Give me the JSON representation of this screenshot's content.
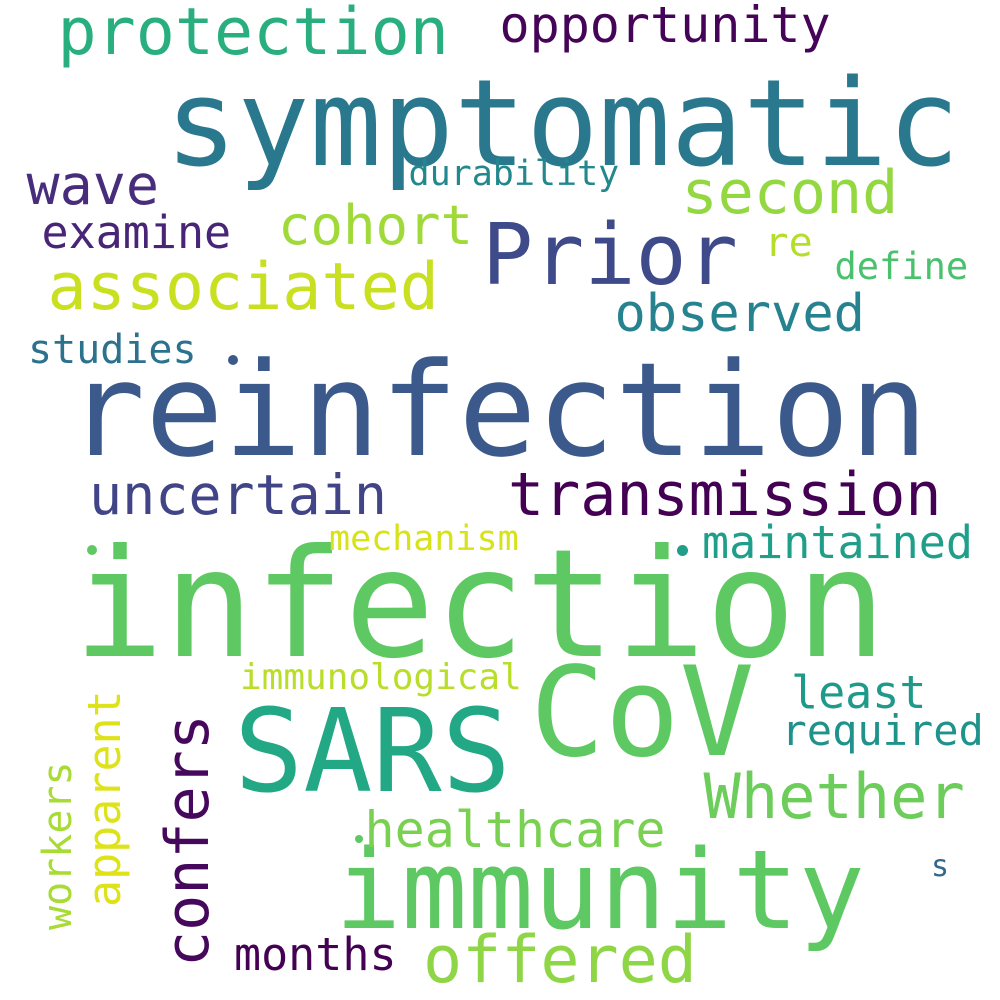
{
  "words": [
    {
      "text": "reinfection",
      "color": "#3b5a8b",
      "rotated": false
    },
    {
      "text": "infection",
      "color": "#5ec962",
      "rotated": false
    },
    {
      "text": "symptomatic",
      "color": "#2a788e",
      "rotated": false
    },
    {
      "text": "immunity",
      "color": "#5ec962",
      "rotated": false
    },
    {
      "text": "SARS",
      "color": "#22a884",
      "rotated": false
    },
    {
      "text": "CoV",
      "color": "#5ec962",
      "rotated": false
    },
    {
      "text": "Prior",
      "color": "#3e4a89",
      "rotated": false
    },
    {
      "text": "transmission",
      "color": "#440154",
      "rotated": false
    },
    {
      "text": "uncertain",
      "color": "#414487",
      "rotated": false
    },
    {
      "text": "associated",
      "color": "#c8e020",
      "rotated": false
    },
    {
      "text": "protection",
      "color": "#29af7f",
      "rotated": false
    },
    {
      "text": "opportunity",
      "color": "#450457",
      "rotated": false
    },
    {
      "text": "wave",
      "color": "#472d7b",
      "rotated": false
    },
    {
      "text": "second",
      "color": "#93d741",
      "rotated": false
    },
    {
      "text": "durability",
      "color": "#23888e",
      "rotated": false
    },
    {
      "text": "examine",
      "color": "#482576",
      "rotated": false
    },
    {
      "text": "cohort",
      "color": "#a0da39",
      "rotated": false
    },
    {
      "text": "re",
      "color": "#b5de2b",
      "rotated": false
    },
    {
      "text": "define",
      "color": "#4ac16d",
      "rotated": false
    },
    {
      "text": "observed",
      "color": "#26828e",
      "rotated": false
    },
    {
      "text": "studies",
      "color": "#2c728e",
      "rotated": false
    },
    {
      "text": "maintained",
      "color": "#1f9e89",
      "rotated": false
    },
    {
      "text": "mechanism",
      "color": "#d8e219",
      "rotated": false
    },
    {
      "text": "immunological",
      "color": "#b8de29",
      "rotated": false
    },
    {
      "text": "least",
      "color": "#1f9a8a",
      "rotated": false
    },
    {
      "text": "required",
      "color": "#20928c",
      "rotated": false
    },
    {
      "text": "Whether",
      "color": "#6ccd5a",
      "rotated": false
    },
    {
      "text": "healthcare",
      "color": "#7ad151",
      "rotated": false
    },
    {
      "text": "offered",
      "color": "#8ed645",
      "rotated": false
    },
    {
      "text": "months",
      "color": "#440154",
      "rotated": false
    },
    {
      "text": "s",
      "color": "#31688e",
      "rotated": false
    },
    {
      "text": "confers",
      "color": "#46085c",
      "rotated": true
    },
    {
      "text": "apparent",
      "color": "#dde318",
      "rotated": true
    },
    {
      "text": "workers",
      "color": "#a8db34",
      "rotated": true
    }
  ],
  "dots": [
    {
      "color": "#3b5a8b"
    },
    {
      "color": "#5ec962"
    },
    {
      "color": "#1f9e89"
    },
    {
      "color": "#5ec962"
    }
  ]
}
